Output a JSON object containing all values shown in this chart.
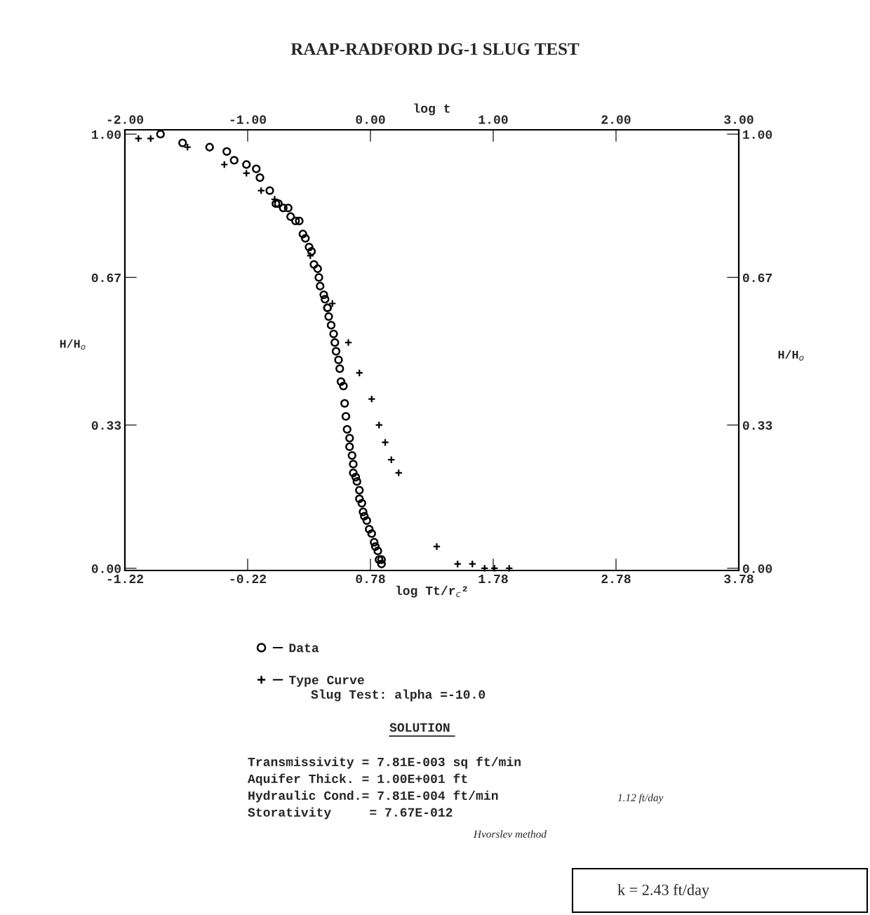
{
  "chart_data": {
    "type": "scatter",
    "title": "RAAP-RADFORD DG-1 SLUG TEST",
    "xlabel": "log Tt/r$_{c}$²",
    "ylabel": "H/H$_{o}$",
    "y2label": "H/H$_{o}$",
    "x2label": "log t",
    "xlim": [
      -1.22,
      3.78
    ],
    "xticks": [
      {
        "value": -1.22,
        "label": "-1.22"
      },
      {
        "value": -0.22,
        "label": "-0.22"
      },
      {
        "value": 0.78,
        "label": "0.78"
      },
      {
        "value": 1.78,
        "label": "1.78"
      },
      {
        "value": 2.78,
        "label": "2.78"
      },
      {
        "value": 3.78,
        "label": "3.78"
      }
    ],
    "x2lim": [
      -2.0,
      3.0
    ],
    "x2ticks": [
      {
        "value": -2.0,
        "label": "-2.00"
      },
      {
        "value": -1.0,
        "label": "-1.00"
      },
      {
        "value": 0.0,
        "label": "0.00"
      },
      {
        "value": 1.0,
        "label": "1.00"
      },
      {
        "value": 2.0,
        "label": "2.00"
      },
      {
        "value": 3.0,
        "label": "3.00"
      }
    ],
    "ylim": [
      -0.005,
      1.01
    ],
    "yticks": [
      {
        "value": 0.0,
        "label": "0.00"
      },
      0.33,
      0.67,
      {
        "value": 1.0,
        "label": "1.00"
      }
    ],
    "y2lim": [
      -0.005,
      1.01
    ],
    "y2ticks": [
      {
        "value": 0.0,
        "label": "0.00"
      },
      0.33,
      0.67,
      {
        "value": 1.0,
        "label": "1.00"
      }
    ],
    "grid": false,
    "legend": "bottom",
    "series": [
      {
        "name": "Data",
        "color": "#000000",
        "marker": "circle",
        "x": [
          -0.93,
          -0.75,
          -0.53,
          -0.39,
          -0.33,
          -0.23,
          -0.15,
          -0.12,
          -0.04,
          0.01,
          0.03,
          0.07,
          0.11,
          0.13,
          0.17,
          0.2,
          0.23,
          0.25,
          0.28,
          0.3,
          0.32,
          0.35,
          0.36,
          0.37,
          0.4,
          0.41,
          0.43,
          0.43,
          0.44,
          0.46,
          0.48,
          0.49,
          0.5,
          0.52,
          0.53,
          0.54,
          0.56,
          0.57,
          0.58,
          0.59,
          0.61,
          0.61,
          0.63,
          0.64,
          0.64,
          0.66,
          0.67,
          0.69,
          0.69,
          0.71,
          0.72,
          0.73,
          0.75,
          0.77,
          0.79,
          0.81,
          0.82,
          0.84,
          0.85,
          0.87,
          0.87
        ],
        "values": [
          1.0,
          0.98,
          0.97,
          0.96,
          0.94,
          0.93,
          0.92,
          0.9,
          0.87,
          0.84,
          0.84,
          0.83,
          0.83,
          0.81,
          0.8,
          0.8,
          0.77,
          0.76,
          0.74,
          0.73,
          0.7,
          0.69,
          0.67,
          0.65,
          0.63,
          0.62,
          0.6,
          0.6,
          0.58,
          0.56,
          0.54,
          0.52,
          0.5,
          0.48,
          0.46,
          0.43,
          0.42,
          0.38,
          0.35,
          0.32,
          0.3,
          0.28,
          0.26,
          0.24,
          0.22,
          0.21,
          0.2,
          0.18,
          0.16,
          0.15,
          0.13,
          0.12,
          0.11,
          0.09,
          0.08,
          0.06,
          0.05,
          0.04,
          0.02,
          0.02,
          0.01
        ]
      },
      {
        "name": "Type Curve",
        "color": "#000000",
        "marker": "cross",
        "x": [
          -1.11,
          -1.01,
          -0.71,
          -0.41,
          -0.23,
          -0.11,
          0.0,
          0.29,
          0.47,
          0.6,
          0.69,
          0.79,
          0.85,
          0.9,
          0.95,
          1.01,
          1.32,
          1.49,
          1.61,
          1.71,
          1.79,
          1.91
        ],
        "values": [
          0.99,
          0.99,
          0.97,
          0.93,
          0.91,
          0.87,
          0.85,
          0.72,
          0.61,
          0.52,
          0.45,
          0.39,
          0.33,
          0.29,
          0.25,
          0.22,
          0.05,
          0.01,
          0.01,
          0.0,
          0.0,
          0.0
        ]
      }
    ],
    "annotations": [
      "Slug Test: alpha =-10.0",
      "SOLUTION",
      "Transmissivity = 7.81E-003 sq ft/min",
      "Aquifer Thick. = 1.00E+001 ft",
      "Hydraulic Cond.= 7.81E-004 ft/min",
      "Storativity     = 7.67E-012",
      "1.12 ft/day",
      "Hvorslev method",
      "k = 2.43 ft/day"
    ]
  }
}
